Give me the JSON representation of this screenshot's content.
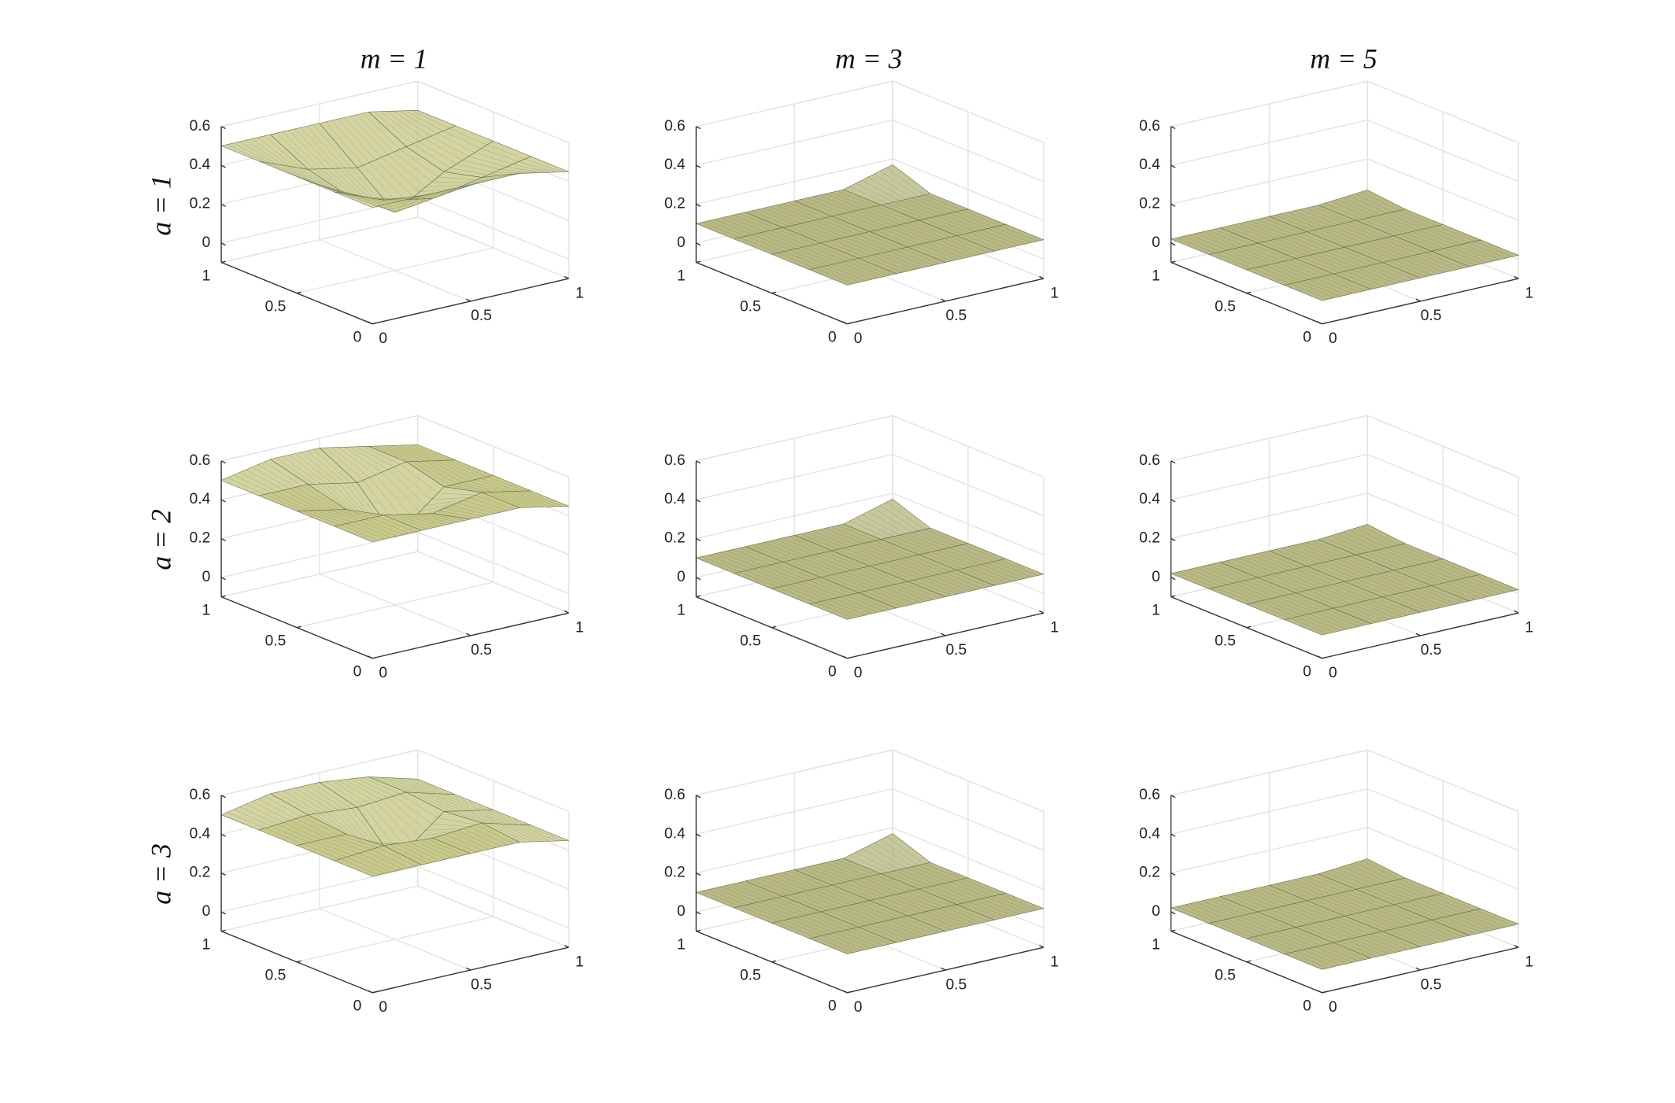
{
  "figure": {
    "column_titles": [
      "m = 1",
      "m = 3",
      "m = 5"
    ],
    "row_labels": [
      "a = 1",
      "a = 2",
      "a = 3"
    ]
  },
  "chart_data": [
    {
      "type": "surface",
      "x": [
        0,
        0.25,
        0.5,
        0.75,
        1
      ],
      "y": [
        0,
        0.25,
        0.5,
        0.75,
        1
      ],
      "z": [
        [
          0.5,
          0.5,
          0.5,
          0.5,
          0.45
        ],
        [
          0.5,
          0.4,
          0.35,
          0.4,
          0.45
        ],
        [
          0.5,
          0.35,
          0.2,
          0.35,
          0.45
        ],
        [
          0.5,
          0.4,
          0.35,
          0.4,
          0.45
        ],
        [
          0.5,
          0.5,
          0.5,
          0.5,
          0.45
        ]
      ],
      "xlim": [
        0,
        1
      ],
      "ylim": [
        0,
        1
      ],
      "zlim": [
        -0.1,
        0.6
      ],
      "xticks": [
        0,
        0.5,
        1
      ],
      "yticks": [
        0,
        0.5,
        1
      ],
      "zticks": [
        0,
        0.2,
        0.4,
        0.6
      ],
      "color": "#c9c98c",
      "grid": true
    },
    {
      "type": "surface",
      "x": [
        0,
        0.25,
        0.5,
        0.75,
        1
      ],
      "y": [
        0,
        0.25,
        0.5,
        0.75,
        1
      ],
      "z": [
        [
          0.1,
          0.1,
          0.1,
          0.1,
          0.1
        ],
        [
          0.1,
          0.1,
          0.1,
          0.1,
          0.1
        ],
        [
          0.1,
          0.1,
          0.1,
          0.1,
          0.1
        ],
        [
          0.1,
          0.1,
          0.1,
          0.1,
          0.1
        ],
        [
          0.1,
          0.1,
          0.1,
          0.1,
          0.17
        ]
      ],
      "xlim": [
        0,
        1
      ],
      "ylim": [
        0,
        1
      ],
      "zlim": [
        -0.1,
        0.6
      ],
      "xticks": [
        0,
        0.5,
        1
      ],
      "yticks": [
        0,
        0.5,
        1
      ],
      "zticks": [
        0,
        0.2,
        0.4,
        0.6
      ],
      "color": "#b9b985",
      "grid": true
    },
    {
      "type": "surface",
      "x": [
        0,
        0.25,
        0.5,
        0.75,
        1
      ],
      "y": [
        0,
        0.25,
        0.5,
        0.75,
        1
      ],
      "z": [
        [
          0.02,
          0.02,
          0.02,
          0.02,
          0.02
        ],
        [
          0.02,
          0.02,
          0.02,
          0.02,
          0.02
        ],
        [
          0.02,
          0.02,
          0.02,
          0.02,
          0.02
        ],
        [
          0.02,
          0.02,
          0.02,
          0.02,
          0.02
        ],
        [
          0.02,
          0.02,
          0.02,
          0.02,
          0.04
        ]
      ],
      "xlim": [
        0,
        1
      ],
      "ylim": [
        0,
        1
      ],
      "zlim": [
        -0.1,
        0.6
      ],
      "xticks": [
        0,
        0.5,
        1
      ],
      "yticks": [
        0,
        0.5,
        1
      ],
      "zticks": [
        0,
        0.2,
        0.4,
        0.6
      ],
      "color": "#b9b985",
      "grid": true
    },
    {
      "type": "surface",
      "x": [
        0,
        0.25,
        0.5,
        0.75,
        1
      ],
      "y": [
        0,
        0.25,
        0.5,
        0.75,
        1
      ],
      "z": [
        [
          0.5,
          0.5,
          0.5,
          0.5,
          0.45
        ],
        [
          0.5,
          0.5,
          0.45,
          0.5,
          0.45
        ],
        [
          0.5,
          0.45,
          0.25,
          0.45,
          0.45
        ],
        [
          0.5,
          0.5,
          0.45,
          0.5,
          0.45
        ],
        [
          0.5,
          0.55,
          0.55,
          0.5,
          0.45
        ]
      ],
      "xlim": [
        0,
        1
      ],
      "ylim": [
        0,
        1
      ],
      "zlim": [
        -0.1,
        0.6
      ],
      "xticks": [
        0,
        0.5,
        1
      ],
      "yticks": [
        0,
        0.5,
        1
      ],
      "zticks": [
        0,
        0.2,
        0.4,
        0.6
      ],
      "color": "#c9c98c",
      "grid": true
    },
    {
      "type": "surface",
      "x": [
        0,
        0.25,
        0.5,
        0.75,
        1
      ],
      "y": [
        0,
        0.25,
        0.5,
        0.75,
        1
      ],
      "z": [
        [
          0.1,
          0.1,
          0.1,
          0.1,
          0.1
        ],
        [
          0.1,
          0.1,
          0.1,
          0.1,
          0.1
        ],
        [
          0.1,
          0.1,
          0.1,
          0.1,
          0.1
        ],
        [
          0.1,
          0.1,
          0.1,
          0.1,
          0.1
        ],
        [
          0.1,
          0.1,
          0.1,
          0.1,
          0.17
        ]
      ],
      "xlim": [
        0,
        1
      ],
      "ylim": [
        0,
        1
      ],
      "zlim": [
        -0.1,
        0.6
      ],
      "xticks": [
        0,
        0.5,
        1
      ],
      "yticks": [
        0,
        0.5,
        1
      ],
      "zticks": [
        0,
        0.2,
        0.4,
        0.6
      ],
      "color": "#b9b985",
      "grid": true
    },
    {
      "type": "surface",
      "x": [
        0,
        0.25,
        0.5,
        0.75,
        1
      ],
      "y": [
        0,
        0.25,
        0.5,
        0.75,
        1
      ],
      "z": [
        [
          0.02,
          0.02,
          0.02,
          0.02,
          0.02
        ],
        [
          0.02,
          0.02,
          0.02,
          0.02,
          0.02
        ],
        [
          0.02,
          0.02,
          0.02,
          0.02,
          0.02
        ],
        [
          0.02,
          0.02,
          0.02,
          0.02,
          0.02
        ],
        [
          0.02,
          0.02,
          0.02,
          0.02,
          0.04
        ]
      ],
      "xlim": [
        0,
        1
      ],
      "ylim": [
        0,
        1
      ],
      "zlim": [
        -0.1,
        0.6
      ],
      "xticks": [
        0,
        0.5,
        1
      ],
      "yticks": [
        0,
        0.5,
        1
      ],
      "zticks": [
        0,
        0.2,
        0.4,
        0.6
      ],
      "color": "#b9b985",
      "grid": true
    },
    {
      "type": "surface",
      "x": [
        0,
        0.25,
        0.5,
        0.75,
        1
      ],
      "y": [
        0,
        0.25,
        0.5,
        0.75,
        1
      ],
      "z": [
        [
          0.5,
          0.5,
          0.5,
          0.5,
          0.45
        ],
        [
          0.5,
          0.52,
          0.5,
          0.52,
          0.45
        ],
        [
          0.5,
          0.5,
          0.3,
          0.5,
          0.45
        ],
        [
          0.5,
          0.52,
          0.5,
          0.52,
          0.45
        ],
        [
          0.5,
          0.55,
          0.55,
          0.52,
          0.45
        ]
      ],
      "xlim": [
        0,
        1
      ],
      "ylim": [
        0,
        1
      ],
      "zlim": [
        -0.1,
        0.6
      ],
      "xticks": [
        0,
        0.5,
        1
      ],
      "yticks": [
        0,
        0.5,
        1
      ],
      "zticks": [
        0,
        0.2,
        0.4,
        0.6
      ],
      "color": "#c9c98c",
      "grid": true
    },
    {
      "type": "surface",
      "x": [
        0,
        0.25,
        0.5,
        0.75,
        1
      ],
      "y": [
        0,
        0.25,
        0.5,
        0.75,
        1
      ],
      "z": [
        [
          0.1,
          0.1,
          0.1,
          0.1,
          0.1
        ],
        [
          0.1,
          0.1,
          0.1,
          0.1,
          0.1
        ],
        [
          0.1,
          0.1,
          0.1,
          0.1,
          0.1
        ],
        [
          0.1,
          0.1,
          0.1,
          0.1,
          0.1
        ],
        [
          0.1,
          0.1,
          0.1,
          0.1,
          0.17
        ]
      ],
      "xlim": [
        0,
        1
      ],
      "ylim": [
        0,
        1
      ],
      "zlim": [
        -0.1,
        0.6
      ],
      "xticks": [
        0,
        0.5,
        1
      ],
      "yticks": [
        0,
        0.5,
        1
      ],
      "zticks": [
        0,
        0.2,
        0.4,
        0.6
      ],
      "color": "#b9b985",
      "grid": true
    },
    {
      "type": "surface",
      "x": [
        0,
        0.25,
        0.5,
        0.75,
        1
      ],
      "y": [
        0,
        0.25,
        0.5,
        0.75,
        1
      ],
      "z": [
        [
          0.02,
          0.02,
          0.02,
          0.02,
          0.02
        ],
        [
          0.02,
          0.02,
          0.02,
          0.02,
          0.02
        ],
        [
          0.02,
          0.02,
          0.02,
          0.02,
          0.02
        ],
        [
          0.02,
          0.02,
          0.02,
          0.02,
          0.02
        ],
        [
          0.02,
          0.02,
          0.02,
          0.02,
          0.04
        ]
      ],
      "xlim": [
        0,
        1
      ],
      "ylim": [
        0,
        1
      ],
      "zlim": [
        -0.1,
        0.6
      ],
      "xticks": [
        0,
        0.5,
        1
      ],
      "yticks": [
        0,
        0.5,
        1
      ],
      "zticks": [
        0,
        0.2,
        0.4,
        0.6
      ],
      "color": "#b9b985",
      "grid": true
    }
  ]
}
